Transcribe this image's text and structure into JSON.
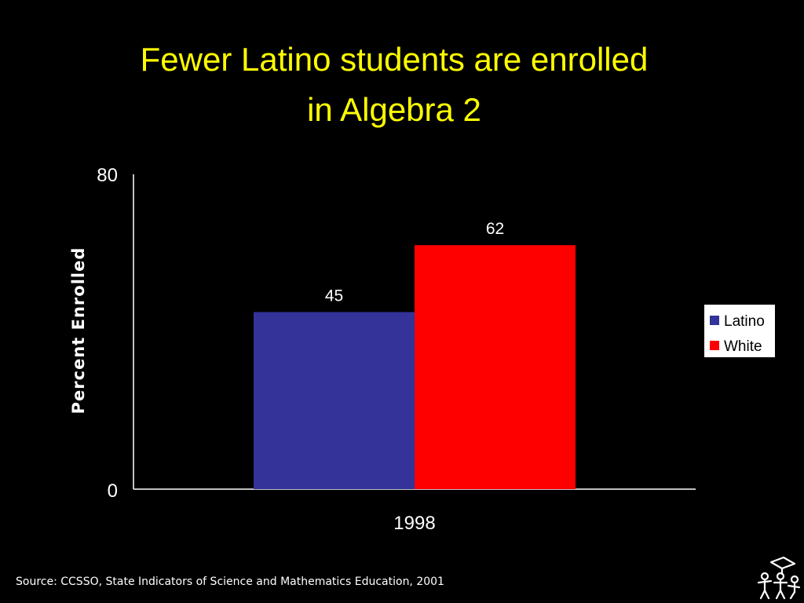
{
  "slide": {
    "title_line1": "Fewer Latino students are enrolled",
    "title_line2": "in Algebra 2",
    "source": "Source: CCSSO, State Indicators of Science and Mathematics Education, 2001",
    "logo_icon": "students-graduation-icon"
  },
  "colors": {
    "background": "#000000",
    "title": "#FFFF00",
    "text": "#FFFFFF",
    "latino": "#333399",
    "white": "#FF0000"
  },
  "chart_data": {
    "type": "bar",
    "title": "",
    "categories": [
      "1998"
    ],
    "series": [
      {
        "name": "Latino",
        "values": [
          45
        ],
        "color": "#333399"
      },
      {
        "name": "White",
        "values": [
          62
        ],
        "color": "#FF0000"
      }
    ],
    "data_labels": [
      "45",
      "62"
    ],
    "xlabel": "",
    "ylabel": "Percent Enrolled",
    "ylim": [
      0,
      80
    ],
    "yticks": [
      "0",
      "80"
    ],
    "grid": false,
    "legend": "right"
  }
}
